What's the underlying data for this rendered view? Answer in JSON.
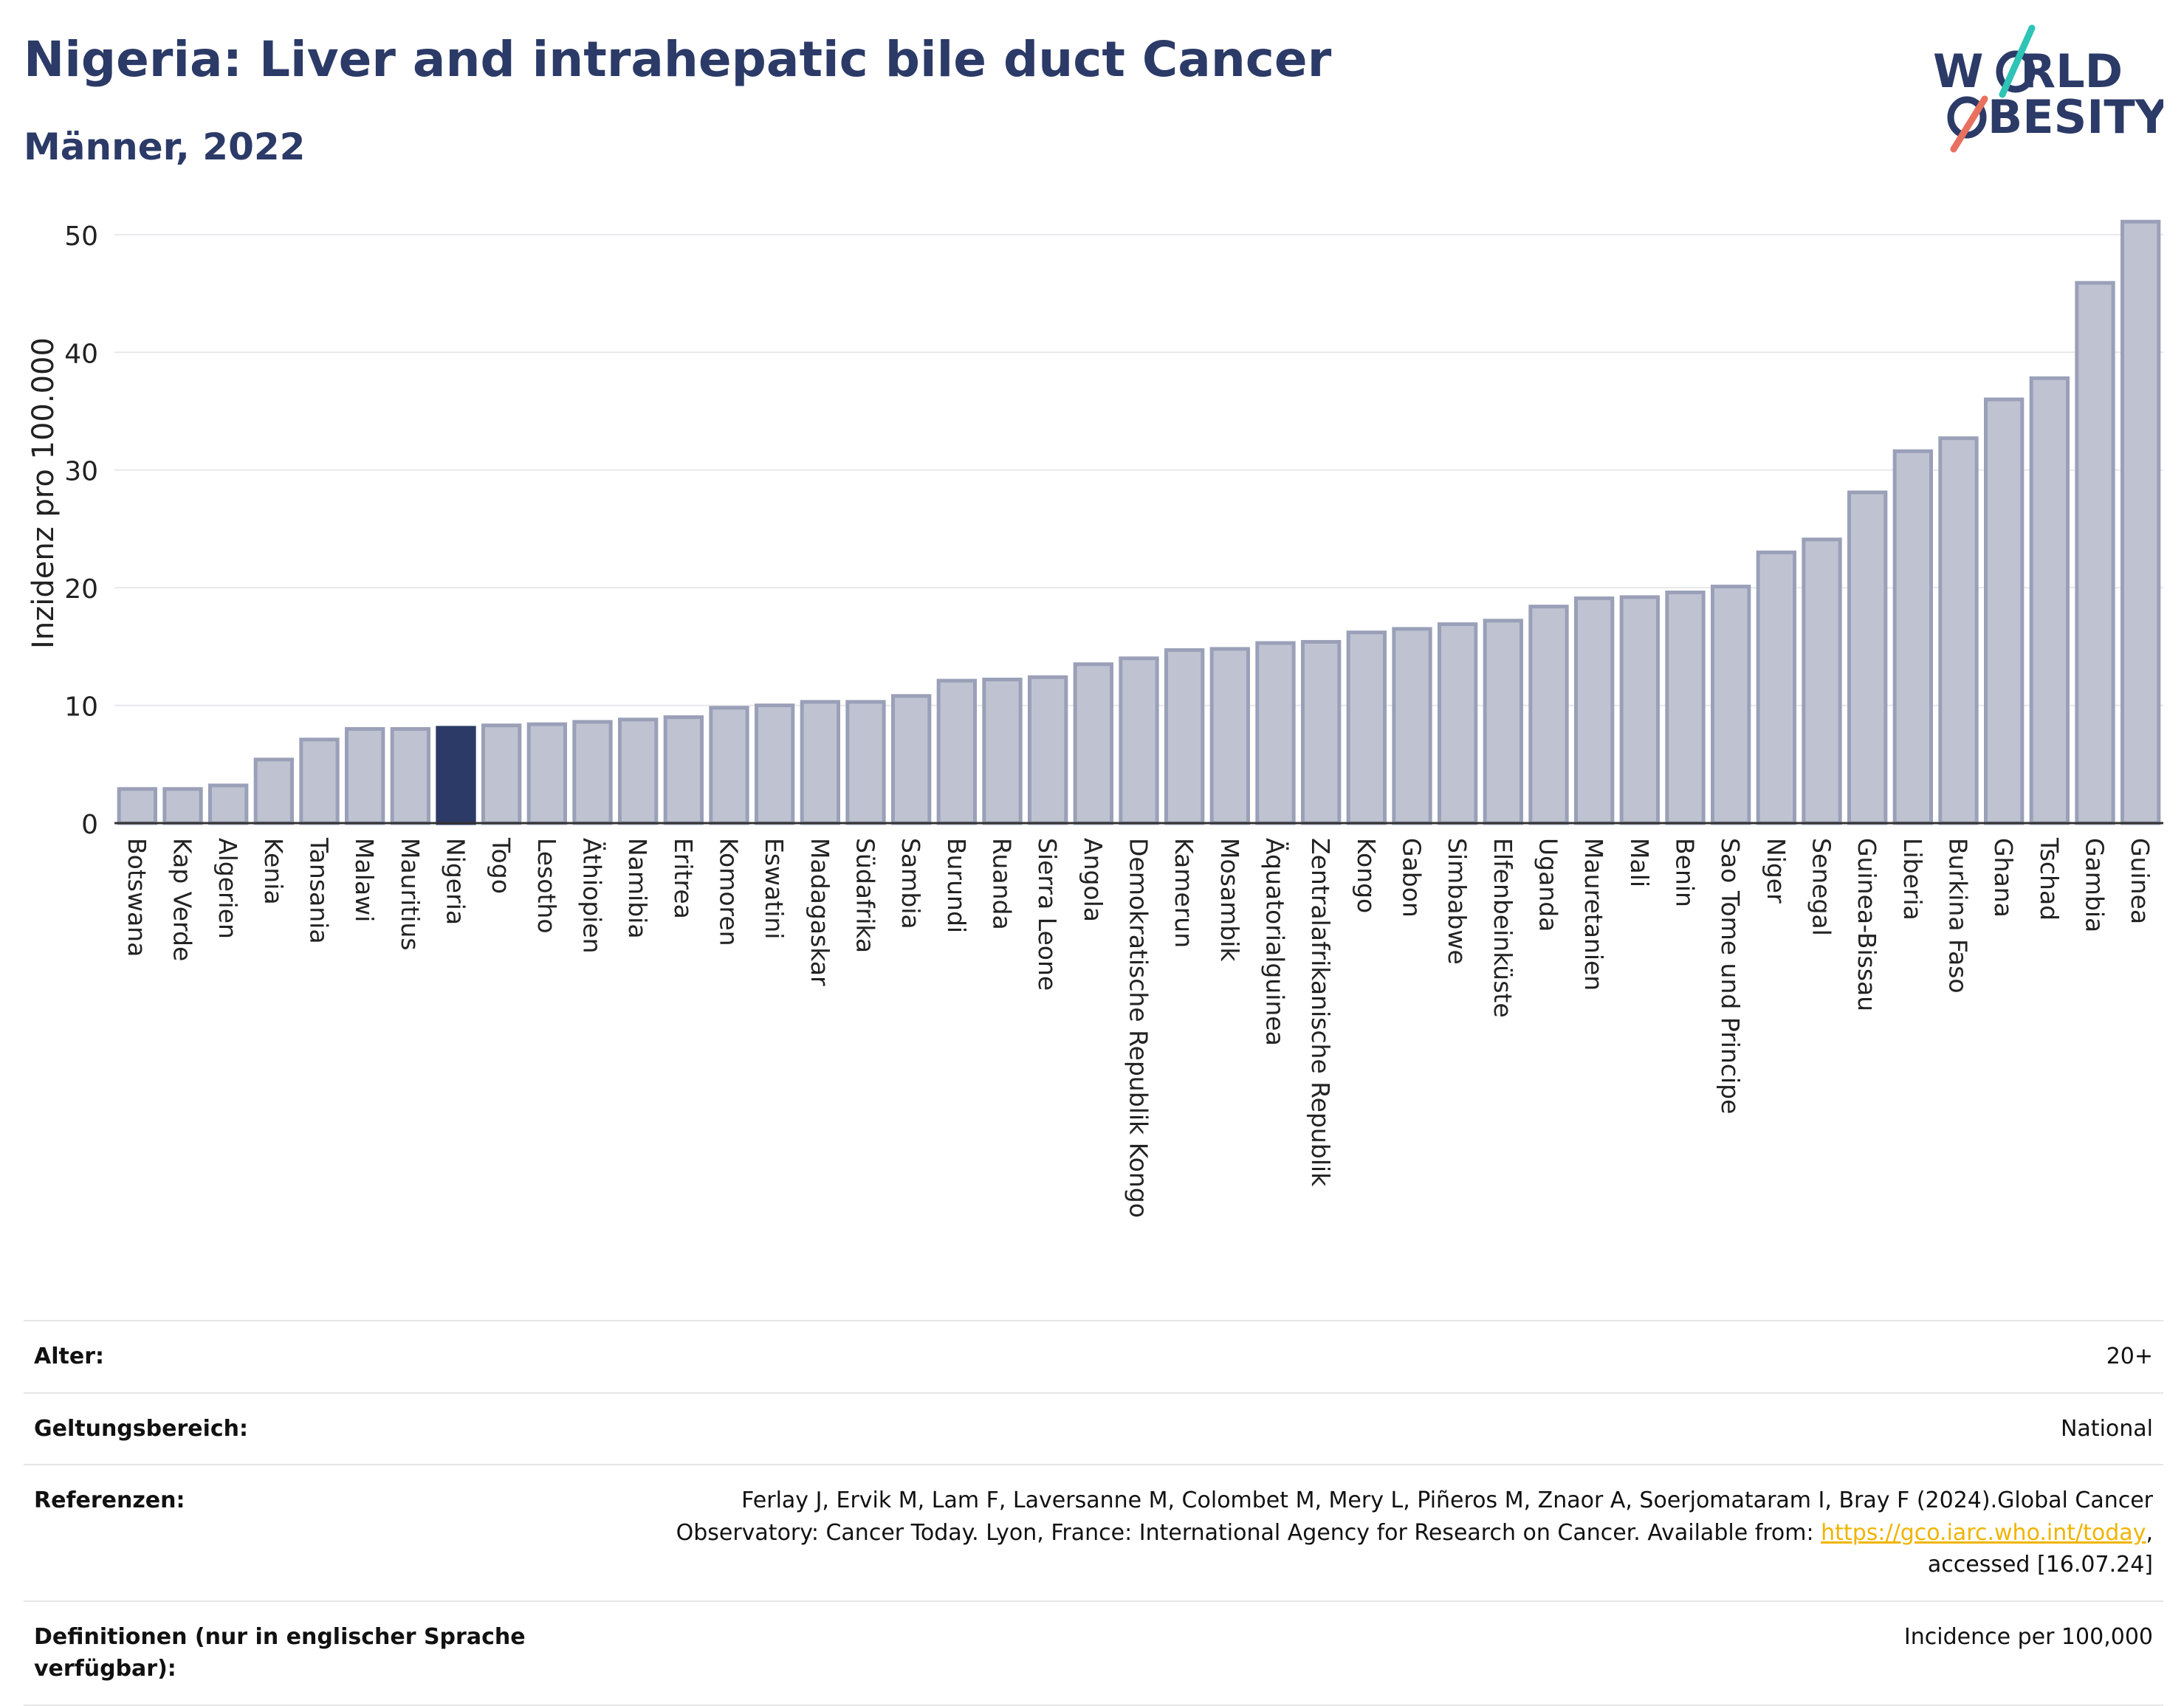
{
  "header": {
    "title": "Nigeria: Liver and intrahepatic bile duct Cancer",
    "subtitle": "Männer, 2022"
  },
  "logo": {
    "line1_pre": "W",
    "line1_post": "RLD",
    "line2_pre": "",
    "line2_post": "BESITY",
    "text_color": "#2b3a67",
    "slash_colors": [
      "#2ec4b6",
      "#e8705f"
    ]
  },
  "chart_data": {
    "type": "bar",
    "title": "Nigeria: Liver and intrahepatic bile duct Cancer",
    "subtitle": "Männer, 2022",
    "xlabel": "",
    "ylabel": "Inzidenz pro 100.000",
    "ylim": [
      0,
      53
    ],
    "yticks": [
      0,
      10,
      20,
      30,
      40,
      50
    ],
    "grid": true,
    "legend": "none",
    "highlight": "Nigeria",
    "colors": {
      "bar": "#bfc3d1",
      "bar_edge": "#9aa0b8",
      "highlight": "#2b3a67"
    },
    "categories": [
      "Botswana",
      "Kap Verde",
      "Algerien",
      "Kenia",
      "Tansania",
      "Malawi",
      "Mauritius",
      "Nigeria",
      "Togo",
      "Lesotho",
      "Äthiopien",
      "Namibia",
      "Eritrea",
      "Komoren",
      "Eswatini",
      "Madagaskar",
      "Südafrika",
      "Sambia",
      "Burundi",
      "Ruanda",
      "Sierra Leone",
      "Angola",
      "Demokratische Republik Kongo",
      "Kamerun",
      "Mosambik",
      "Äquatorialguinea",
      "Zentralafrikanische Republik",
      "Kongo",
      "Gabon",
      "Simbabwe",
      "Elfenbeinküste",
      "Uganda",
      "Mauretanien",
      "Mali",
      "Benin",
      "Sao Tome und Principe",
      "Niger",
      "Senegal",
      "Guinea-Bissau",
      "Liberia",
      "Burkina Faso",
      "Ghana",
      "Tschad",
      "Gambia",
      "Guinea"
    ],
    "values": [
      2.9,
      2.9,
      3.2,
      5.4,
      7.1,
      8.0,
      8.0,
      8.1,
      8.3,
      8.4,
      8.6,
      8.8,
      9.0,
      9.8,
      10.0,
      10.3,
      10.3,
      10.8,
      12.1,
      12.2,
      12.4,
      13.5,
      14.0,
      14.7,
      14.8,
      15.3,
      15.4,
      16.2,
      16.5,
      16.9,
      17.2,
      18.4,
      19.1,
      19.2,
      19.6,
      20.1,
      23.0,
      24.1,
      28.1,
      31.6,
      32.7,
      36.0,
      37.8,
      45.9,
      51.1
    ]
  },
  "info": {
    "age_label": "Alter:",
    "age_value": "20+",
    "scope_label": "Geltungsbereich:",
    "scope_value": "National",
    "refs_label": "Referenzen:",
    "refs_line1": "Ferlay J, Ervik M, Lam F, Laversanne M, Colombet M, Mery L, Piñeros M, Znaor A, Soerjomataram I, Bray F (2024).Global Cancer",
    "refs_line2_pre": "Observatory: Cancer Today. Lyon, France: International Agency for Research on Cancer. Available from: ",
    "refs_link": "https://gco.iarc.who.int/today",
    "refs_line2_post": ",",
    "refs_line3": "accessed [16.07.24]",
    "def_label": "Definitionen (nur in englischer Sprache verfügbar):",
    "def_value": "Incidence per 100,000"
  }
}
